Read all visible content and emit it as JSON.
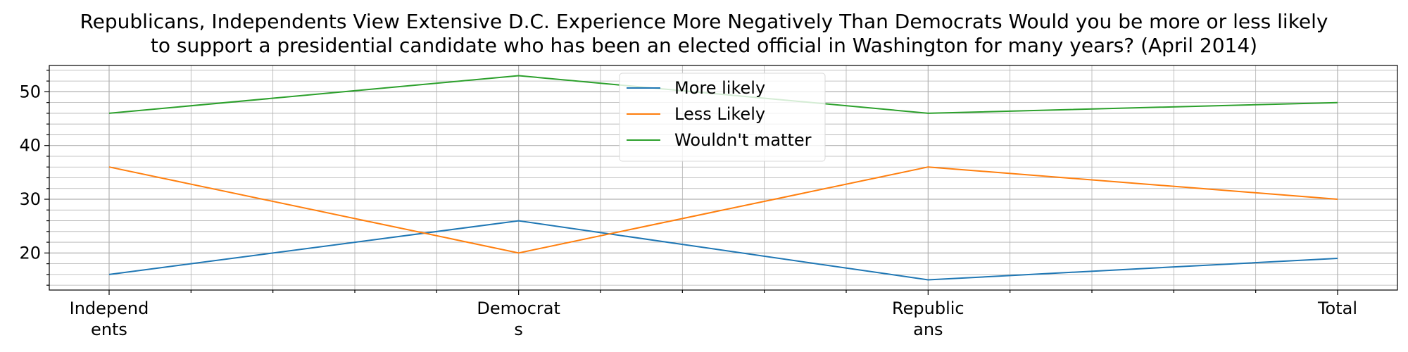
{
  "chart_data": {
    "type": "line",
    "title": "Republicans, Independents View Extensive D.C. Experience More Negatively Than Democrats Would you be more or less likely to support a presidential candidate who has been an elected official in Washington for many years? (April 2014)",
    "title_lines": [
      "Republicans, Independents View Extensive D.C. Experience More Negatively Than Democrats Would you be more or less likely",
      "to support a presidential candidate who has been an elected official in Washington for many years? (April 2014)"
    ],
    "categories": [
      "Independents",
      "Democrats",
      "Republicans",
      "Total"
    ],
    "category_tick_lines": [
      [
        "Independ",
        "ents"
      ],
      [
        "Democrat",
        "s"
      ],
      [
        "Republic",
        "ans"
      ],
      [
        "Total"
      ]
    ],
    "series": [
      {
        "name": "More likely",
        "color": "#1f77b4",
        "values": [
          16,
          26,
          15,
          19
        ]
      },
      {
        "name": "Less Likely",
        "color": "#ff7f0e",
        "values": [
          36,
          20,
          36,
          30
        ]
      },
      {
        "name": "Wouldn't matter",
        "color": "#2ca02c",
        "values": [
          46,
          53,
          46,
          48
        ]
      }
    ],
    "xlabel": "",
    "ylabel": "",
    "ylim": [
      13.1,
      54.9
    ],
    "yticks": [
      20,
      30,
      40,
      50
    ],
    "grid": true,
    "minor_grid": true,
    "legend_position": "upper center"
  }
}
